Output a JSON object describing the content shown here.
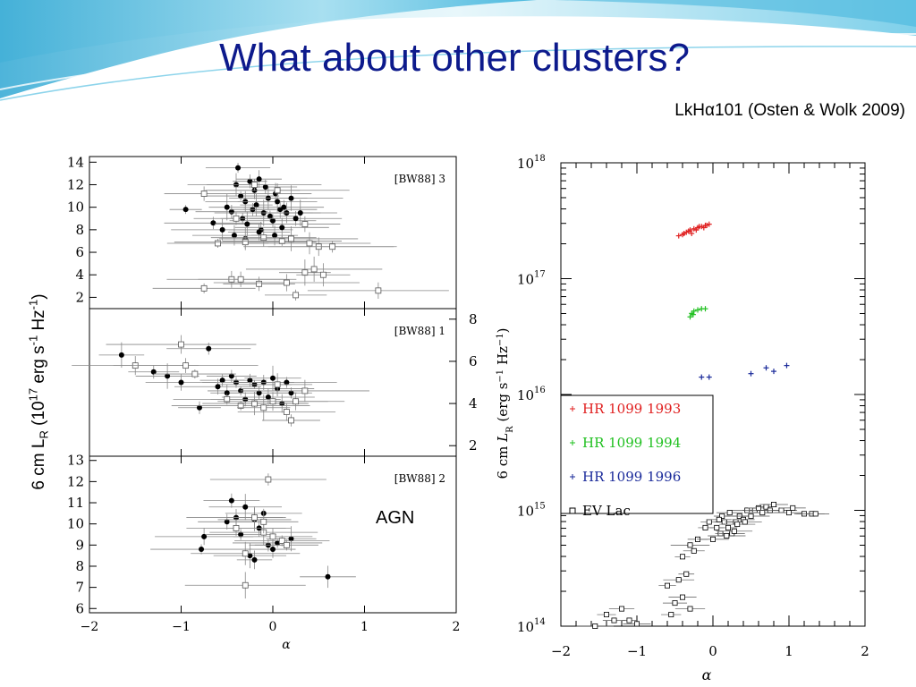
{
  "slide": {
    "title": "What about other clusters?",
    "citation": "LkHα101 (Osten & Wolk 2009)",
    "agn_label": "AGN",
    "left_ylabel_main": "6 cm L",
    "left_ylabel_sub": "R",
    "left_ylabel_paren": " (10",
    "left_ylabel_exp1": "17",
    "left_ylabel_unit1": " erg s",
    "left_ylabel_exp2": "-1",
    "left_ylabel_unit2": " Hz",
    "left_ylabel_exp3": "-1",
    "left_ylabel_close": ")"
  },
  "colors": {
    "title": "#0d1a8c",
    "banner_light": "#d7f0f7",
    "banner_dark": "#3db3d9",
    "hr1993": "#e02020",
    "hr1994": "#20c020",
    "hr1996": "#1a2a9a"
  },
  "chart_data": [
    {
      "type": "scatter",
      "panel": "top",
      "annotation": "[BW88] 3",
      "xlim": [
        -2,
        2
      ],
      "ylim": [
        1,
        14.5
      ],
      "yticks": [
        "2",
        "4",
        "6",
        "8",
        "10",
        "12",
        "14"
      ],
      "xticks": [
        "−2",
        "−1",
        "0",
        "1",
        "2"
      ],
      "xlabel": "α",
      "filled_points": [
        [
          -0.95,
          9.8
        ],
        [
          -0.65,
          8.6
        ],
        [
          -0.5,
          10.0
        ],
        [
          -0.45,
          9.6
        ],
        [
          -0.4,
          12.0
        ],
        [
          -0.38,
          13.5
        ],
        [
          -0.35,
          11.0
        ],
        [
          -0.33,
          9.0
        ],
        [
          -0.3,
          10.5
        ],
        [
          -0.28,
          8.5
        ],
        [
          -0.25,
          12.3
        ],
        [
          -0.22,
          9.8
        ],
        [
          -0.2,
          11.5
        ],
        [
          -0.18,
          10.2
        ],
        [
          -0.15,
          12.5
        ],
        [
          -0.13,
          8.0
        ],
        [
          -0.1,
          9.5
        ],
        [
          -0.08,
          11.8
        ],
        [
          -0.05,
          10.8
        ],
        [
          -0.03,
          9.2
        ],
        [
          0.0,
          8.8
        ],
        [
          0.03,
          11.2
        ],
        [
          0.05,
          10.5
        ],
        [
          0.08,
          9.8
        ],
        [
          0.1,
          8.2
        ],
        [
          0.12,
          10.0
        ],
        [
          0.15,
          9.5
        ],
        [
          0.2,
          10.8
        ],
        [
          0.25,
          9.0
        ],
        [
          0.3,
          9.5
        ],
        [
          -0.55,
          8.0
        ],
        [
          -0.42,
          7.5
        ],
        [
          -0.3,
          7.2
        ],
        [
          -0.15,
          7.8
        ],
        [
          0.02,
          7.5
        ]
      ],
      "open_points": [
        [
          -0.75,
          2.8
        ],
        [
          -0.45,
          3.6
        ],
        [
          -0.35,
          3.6
        ],
        [
          -0.15,
          3.2
        ],
        [
          0.15,
          3.3
        ],
        [
          0.25,
          2.2
        ],
        [
          0.35,
          4.2
        ],
        [
          0.45,
          4.5
        ],
        [
          0.55,
          4.0
        ],
        [
          1.15,
          2.6
        ],
        [
          -0.6,
          6.8
        ],
        [
          -0.3,
          6.9
        ],
        [
          -0.1,
          7.3
        ],
        [
          0.1,
          7.0
        ],
        [
          0.2,
          7.2
        ],
        [
          0.4,
          6.8
        ],
        [
          0.5,
          6.5
        ],
        [
          0.65,
          6.5
        ],
        [
          -0.75,
          11.2
        ],
        [
          -0.2,
          12.0
        ],
        [
          0.05,
          11.5
        ],
        [
          -0.4,
          9.0
        ],
        [
          0.35,
          8.5
        ]
      ]
    },
    {
      "type": "scatter",
      "panel": "middle",
      "annotation": "[BW88] 1",
      "xlim": [
        -2,
        2
      ],
      "ylim": [
        1.5,
        8.5
      ],
      "yticks": [
        "2",
        "4",
        "6",
        "8"
      ],
      "xticks": [
        "−2",
        "−1",
        "0",
        "1",
        "2"
      ],
      "xlabel": "α",
      "filled_points": [
        [
          -1.65,
          6.3
        ],
        [
          -1.3,
          5.5
        ],
        [
          -1.15,
          5.3
        ],
        [
          -1.0,
          5.0
        ],
        [
          -0.7,
          6.6
        ],
        [
          -0.55,
          5.1
        ],
        [
          -0.45,
          5.3
        ],
        [
          -0.4,
          5.0
        ],
        [
          -0.35,
          4.6
        ],
        [
          -0.3,
          4.2
        ],
        [
          -0.25,
          5.1
        ],
        [
          -0.2,
          4.9
        ],
        [
          -0.15,
          4.5
        ],
        [
          -0.1,
          5.0
        ],
        [
          -0.05,
          4.3
        ],
        [
          0.0,
          5.2
        ],
        [
          0.05,
          4.7
        ],
        [
          -0.6,
          4.8
        ],
        [
          -0.5,
          4.5
        ],
        [
          0.1,
          4.0
        ],
        [
          0.2,
          4.5
        ],
        [
          -0.8,
          3.8
        ],
        [
          0.15,
          5.0
        ]
      ],
      "open_points": [
        [
          -1.5,
          5.8
        ],
        [
          -1.0,
          6.8
        ],
        [
          -0.95,
          5.8
        ],
        [
          -0.5,
          4.2
        ],
        [
          -0.35,
          3.9
        ],
        [
          -0.2,
          4.0
        ],
        [
          -0.1,
          3.8
        ],
        [
          0.0,
          4.1
        ],
        [
          0.05,
          4.9
        ],
        [
          0.15,
          3.6
        ],
        [
          0.2,
          3.2
        ],
        [
          0.35,
          4.6
        ],
        [
          -0.85,
          5.4
        ],
        [
          0.25,
          4.1
        ]
      ]
    },
    {
      "type": "scatter",
      "panel": "bottom",
      "annotation": "[BW88] 2",
      "xlim": [
        -2,
        2
      ],
      "ylim": [
        5.8,
        13.2
      ],
      "yticks": [
        "6",
        "7",
        "8",
        "9",
        "10",
        "11",
        "12",
        "13"
      ],
      "xticks": [
        "−2",
        "−1",
        "0",
        "1",
        "2"
      ],
      "xlabel": "α",
      "filled_points": [
        [
          -0.78,
          8.8
        ],
        [
          -0.75,
          9.4
        ],
        [
          -0.5,
          10.1
        ],
        [
          -0.45,
          11.1
        ],
        [
          -0.4,
          10.3
        ],
        [
          -0.35,
          9.5
        ],
        [
          -0.3,
          10.8
        ],
        [
          -0.25,
          8.5
        ],
        [
          -0.2,
          10.2
        ],
        [
          -0.15,
          9.8
        ],
        [
          -0.1,
          10.5
        ],
        [
          -0.05,
          9.0
        ],
        [
          0.0,
          8.8
        ],
        [
          0.05,
          9.1
        ],
        [
          0.2,
          9.3
        ],
        [
          0.6,
          7.5
        ],
        [
          -0.2,
          8.3
        ]
      ],
      "open_points": [
        [
          -0.4,
          9.8
        ],
        [
          -0.2,
          10.3
        ],
        [
          -0.1,
          9.6
        ],
        [
          0.0,
          9.4
        ],
        [
          0.1,
          9.2
        ],
        [
          -0.3,
          8.6
        ],
        [
          -0.05,
          12.1
        ],
        [
          -0.1,
          10.1
        ],
        [
          -0.3,
          7.1
        ],
        [
          0.15,
          9.0
        ]
      ]
    },
    {
      "type": "scatter",
      "panel": "right",
      "xlabel": "α",
      "ylabel_parts": [
        "6  cm  ",
        "L",
        "R",
        "  (erg  s",
        "−1",
        "  Hz",
        "−1",
        ")"
      ],
      "xlim": [
        -2,
        2
      ],
      "ylim": [
        14,
        18
      ],
      "y_scale": "log",
      "ytick_base": "10",
      "ytick_exponents": [
        "14",
        "15",
        "16",
        "17",
        "18"
      ],
      "xticks": [
        "−2",
        "−1",
        "0",
        "1",
        "2"
      ],
      "legend_position": "center-left",
      "series": [
        {
          "name": "HR 1099 1993",
          "marker": "plus",
          "points": [
            [
              -0.45,
              17.37
            ],
            [
              -0.4,
              17.38
            ],
            [
              -0.35,
              17.4
            ],
            [
              -0.3,
              17.42
            ],
            [
              -0.28,
              17.39
            ],
            [
              -0.25,
              17.43
            ],
            [
              -0.2,
              17.44
            ],
            [
              -0.15,
              17.45
            ],
            [
              -0.1,
              17.46
            ],
            [
              -0.05,
              17.47
            ],
            [
              -0.32,
              17.41
            ],
            [
              -0.22,
              17.42
            ],
            [
              -0.18,
              17.45
            ],
            [
              -0.12,
              17.44
            ],
            [
              -0.08,
              17.46
            ],
            [
              -0.38,
              17.39
            ]
          ]
        },
        {
          "name": "HR 1099 1994",
          "marker": "plus",
          "points": [
            [
              -0.3,
              16.67
            ],
            [
              -0.28,
              16.7
            ],
            [
              -0.25,
              16.72
            ],
            [
              -0.2,
              16.73
            ],
            [
              -0.15,
              16.74
            ],
            [
              -0.1,
              16.74
            ],
            [
              -0.26,
              16.69
            ]
          ]
        },
        {
          "name": "HR 1099 1996",
          "marker": "plus",
          "points": [
            [
              -0.15,
              16.15
            ],
            [
              -0.05,
              16.15
            ],
            [
              0.5,
              16.18
            ],
            [
              0.7,
              16.23
            ],
            [
              0.8,
              16.2
            ],
            [
              0.97,
              16.25
            ]
          ]
        },
        {
          "name": "EV Lac",
          "marker": "square",
          "points": [
            [
              -1.55,
              14.0
            ],
            [
              -1.4,
              14.1
            ],
            [
              -1.3,
              14.05
            ],
            [
              -1.2,
              14.15
            ],
            [
              -1.1,
              14.05
            ],
            [
              -1.0,
              14.02
            ],
            [
              -0.55,
              14.1
            ],
            [
              -0.5,
              14.2
            ],
            [
              -0.4,
              14.25
            ],
            [
              -0.3,
              14.15
            ],
            [
              -0.6,
              14.35
            ],
            [
              -0.45,
              14.4
            ],
            [
              -0.35,
              14.45
            ],
            [
              -0.4,
              14.6
            ],
            [
              -0.3,
              14.7
            ],
            [
              -0.25,
              14.65
            ],
            [
              -0.2,
              14.75
            ],
            [
              -0.1,
              14.85
            ],
            [
              -0.05,
              14.9
            ],
            [
              0.0,
              14.75
            ],
            [
              0.05,
              14.85
            ],
            [
              0.1,
              14.8
            ],
            [
              0.15,
              14.9
            ],
            [
              0.2,
              14.85
            ],
            [
              0.25,
              14.8
            ],
            [
              0.3,
              14.9
            ],
            [
              0.35,
              14.95
            ],
            [
              0.4,
              14.92
            ],
            [
              0.45,
              15.0
            ],
            [
              0.5,
              14.95
            ],
            [
              0.55,
              15.0
            ],
            [
              0.6,
              15.02
            ],
            [
              0.65,
              14.98
            ],
            [
              0.7,
              15.03
            ],
            [
              0.75,
              15.0
            ],
            [
              0.8,
              15.05
            ],
            [
              0.9,
              15.0
            ],
            [
              1.0,
              14.98
            ],
            [
              1.05,
              15.02
            ],
            [
              1.2,
              14.97
            ],
            [
              1.3,
              14.97
            ],
            [
              1.35,
              14.97
            ],
            [
              0.12,
              14.95
            ],
            [
              0.22,
              14.98
            ],
            [
              0.28,
              14.82
            ],
            [
              0.32,
              14.88
            ],
            [
              0.42,
              14.9
            ],
            [
              0.18,
              14.78
            ],
            [
              0.08,
              14.92
            ]
          ]
        }
      ]
    }
  ]
}
